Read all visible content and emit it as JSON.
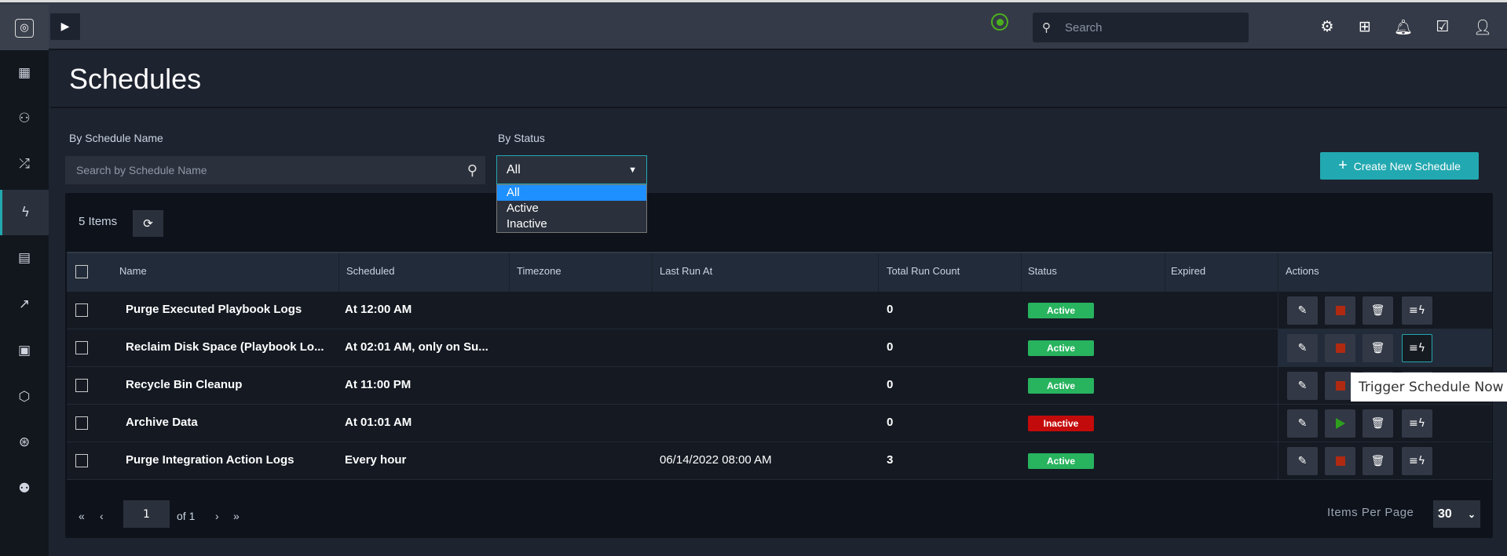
{
  "topbar": {
    "search_placeholder": "Search",
    "icons": [
      "settings-icon",
      "hierarchy-icon",
      "bell-icon",
      "clipboard-check-icon",
      "user-icon"
    ]
  },
  "sidebar": {
    "items": [
      "dashboard",
      "people",
      "shuffle",
      "schedules",
      "briefcase",
      "analytics",
      "widgets",
      "network",
      "support",
      "users"
    ],
    "active": "schedules"
  },
  "page": {
    "title": "Schedules"
  },
  "filters": {
    "name_label": "By Schedule Name",
    "name_placeholder": "Search by Schedule Name",
    "status_label": "By Status",
    "status_value": "All",
    "status_options": [
      "All",
      "Active",
      "Inactive"
    ]
  },
  "create_button": "Create New Schedule",
  "table": {
    "count_label": "5 Items",
    "columns": [
      "Name",
      "Scheduled",
      "Timezone",
      "Last Run At",
      "Total Run Count",
      "Status",
      "Expired",
      "Actions"
    ],
    "rows": [
      {
        "name": "Purge Executed Playbook Logs",
        "scheduled": "At 12:00 AM",
        "timezone": "",
        "last_run": "",
        "count": "0",
        "status": "Active",
        "expired": ""
      },
      {
        "name": "Reclaim Disk Space (Playbook Lo...",
        "scheduled": "At 02:01 AM, only on Su...",
        "timezone": "",
        "last_run": "",
        "count": "0",
        "status": "Active",
        "expired": ""
      },
      {
        "name": "Recycle Bin Cleanup",
        "scheduled": "At 11:00 PM",
        "timezone": "",
        "last_run": "",
        "count": "0",
        "status": "Active",
        "expired": ""
      },
      {
        "name": "Archive Data",
        "scheduled": "At 01:01 AM",
        "timezone": "",
        "last_run": "",
        "count": "0",
        "status": "Inactive",
        "expired": ""
      },
      {
        "name": "Purge Integration Action Logs",
        "scheduled": "Every hour",
        "timezone": "",
        "last_run": "06/14/2022 08:00 AM",
        "count": "3",
        "status": "Active",
        "expired": ""
      }
    ]
  },
  "tooltip": "Trigger Schedule Now",
  "pagination": {
    "page": "1",
    "of_label": "of 1",
    "items_per_page_label": "Items Per Page",
    "items_per_page": "30"
  },
  "colors": {
    "accent": "#22a8b0",
    "active": "#28b35e",
    "inactive": "#c40b0b",
    "stop": "#b02a12",
    "play": "#2ea01e"
  }
}
